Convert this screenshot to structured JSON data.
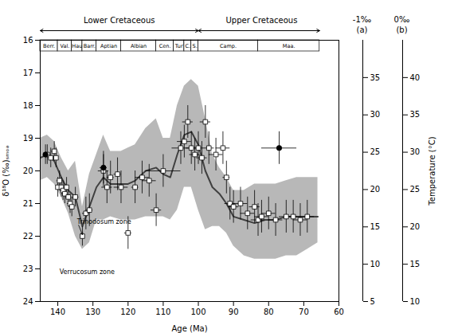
{
  "chart_data": {
    "type": "scatter",
    "xlabel": "Age (Ma)",
    "ylabel": "δ¹⁸O (‰)ₛₘₒₔ",
    "xlim": [
      145,
      60
    ],
    "ylim": [
      24,
      16
    ],
    "xticks": [
      140,
      130,
      120,
      110,
      100,
      90,
      80,
      70,
      60
    ],
    "yticks": [
      16,
      17,
      18,
      19,
      20,
      21,
      22,
      23,
      24
    ],
    "series": [
      {
        "type": "area",
        "color": "#a0a0a0",
        "x": [
          145,
          143,
          141,
          139,
          137,
          135,
          133,
          131,
          129,
          127,
          125,
          122,
          120,
          118,
          115,
          112,
          110,
          108,
          106,
          104,
          102,
          100,
          98,
          96,
          94,
          92,
          90,
          87,
          84,
          81,
          78,
          75,
          72,
          69,
          66
        ],
        "upper": [
          19.0,
          18.9,
          19.1,
          19.6,
          20.0,
          19.7,
          21.1,
          20.1,
          19.5,
          18.9,
          19.4,
          19.4,
          19.3,
          19.2,
          18.7,
          18.4,
          19.0,
          19.0,
          18.0,
          17.4,
          17.2,
          17.4,
          18.4,
          19.5,
          19.9,
          20.2,
          20.6,
          20.6,
          20.4,
          20.4,
          20.4,
          20.3,
          20.2,
          20.2,
          20.2
        ],
        "lower": [
          20.3,
          20.2,
          20.4,
          20.8,
          21.3,
          22.0,
          22.4,
          22.2,
          21.5,
          21.5,
          21.4,
          21.5,
          21.5,
          21.5,
          21.4,
          21.4,
          21.4,
          21.5,
          21.2,
          20.5,
          20.5,
          21.2,
          21.8,
          21.7,
          21.7,
          21.9,
          22.3,
          22.6,
          22.7,
          22.7,
          22.7,
          22.6,
          22.6,
          22.4,
          22.2
        ]
      },
      {
        "type": "line",
        "color": "#404040",
        "x": [
          145,
          143,
          141,
          139,
          137,
          135,
          133,
          131,
          129,
          127,
          125,
          122,
          120,
          118,
          115,
          112,
          110,
          108,
          106,
          104,
          102,
          100,
          98,
          96,
          94,
          92,
          90,
          87,
          84,
          81,
          78,
          75,
          72,
          69,
          66
        ],
        "values": [
          19.6,
          19.5,
          19.7,
          20.2,
          20.6,
          20.8,
          21.7,
          21.1,
          20.5,
          20.2,
          20.4,
          20.4,
          20.4,
          20.3,
          20.0,
          19.9,
          20.1,
          20.2,
          19.5,
          18.9,
          18.8,
          19.2,
          20.0,
          20.5,
          20.7,
          21.0,
          21.4,
          21.5,
          21.6,
          21.5,
          21.5,
          21.4,
          21.4,
          21.4,
          21.4
        ]
      },
      {
        "type": "scatter",
        "marker": "open_square",
        "color": "black",
        "x": [
          143.0,
          142.0,
          141.0,
          140.5,
          140.0,
          139.5,
          139.0,
          138.5,
          138.0,
          137.5,
          137.0,
          136.5,
          136.0,
          135.0,
          133.0,
          132.0,
          131.0,
          127.0,
          126.0,
          125.0,
          123.0,
          122.0,
          120.0,
          118.0,
          116.0,
          114.0,
          112.0,
          110.0,
          105.0,
          104.0,
          103.0,
          102.0,
          101.0,
          100.0,
          99.0,
          98.0,
          97.0,
          95.0,
          93.0,
          92.0,
          91.0,
          90.0,
          88.0,
          86.0,
          84.0,
          83.0,
          82.0,
          80.0,
          78.0,
          75.0,
          73.0,
          71.0,
          69.0
        ],
        "values": [
          19.5,
          19.6,
          19.4,
          19.6,
          20.5,
          20.3,
          20.5,
          20.6,
          20.7,
          20.5,
          20.8,
          21.0,
          21.1,
          20.8,
          22.0,
          21.3,
          21.2,
          20.0,
          20.5,
          20.2,
          20.1,
          20.5,
          21.9,
          20.5,
          20.2,
          20.3,
          21.2,
          20.0,
          19.3,
          19.1,
          18.5,
          19.3,
          19.5,
          19.3,
          19.6,
          18.5,
          19.3,
          19.5,
          19.3,
          20.2,
          21.0,
          21.1,
          21.0,
          21.3,
          21.1,
          21.5,
          21.4,
          21.3,
          21.5,
          21.4,
          21.4,
          21.5,
          21.4
        ],
        "xerr": [
          1.0,
          0.8,
          0.8,
          0.5,
          0.5,
          0.8,
          0.8,
          0.8,
          0.8,
          0.5,
          0.8,
          0.8,
          0.8,
          1.0,
          0.5,
          1.0,
          1.0,
          1.5,
          1.5,
          1.0,
          1.0,
          2.0,
          1.0,
          1.0,
          2.0,
          2.0,
          1.5,
          5.0,
          2.5,
          2.0,
          1.5,
          1.5,
          1.5,
          1.5,
          1.5,
          1.5,
          1.5,
          2.0,
          2.0,
          1.0,
          1.5,
          1.5,
          2.0,
          2.0,
          1.5,
          2.0,
          2.0,
          2.0,
          2.0,
          2.0,
          2.0,
          2.0,
          2.0
        ],
        "yerr": [
          0.3,
          0.3,
          0.3,
          0.3,
          0.3,
          0.3,
          0.3,
          0.3,
          0.3,
          0.3,
          0.3,
          0.3,
          0.3,
          0.3,
          0.3,
          0.5,
          0.5,
          0.5,
          0.5,
          0.5,
          0.5,
          0.5,
          0.5,
          0.5,
          0.5,
          0.5,
          0.5,
          0.5,
          0.5,
          0.5,
          0.5,
          0.5,
          0.5,
          0.5,
          0.5,
          0.5,
          0.5,
          0.5,
          0.5,
          0.5,
          0.5,
          0.5,
          0.5,
          0.5,
          0.5,
          0.5,
          0.5,
          0.5,
          0.5,
          0.5,
          0.5,
          0.5,
          0.5
        ]
      },
      {
        "type": "scatter",
        "marker": "circle",
        "color": "black",
        "x": [
          143.5,
          127.0,
          77.0
        ],
        "values": [
          19.5,
          19.9,
          19.3
        ],
        "xerr": [
          0.5,
          1.0,
          5.0
        ],
        "yerr": [
          0.3,
          0.5,
          0.5
        ]
      }
    ],
    "stages": [
      {
        "name": "Berr.",
        "xmin": 145,
        "xmax": 140
      },
      {
        "name": "Val.",
        "xmin": 140,
        "xmax": 136
      },
      {
        "name": "Hau",
        "xmin": 136,
        "xmax": 133
      },
      {
        "name": "Barr.",
        "xmin": 133,
        "xmax": 129
      },
      {
        "name": "Aptian",
        "xmin": 129,
        "xmax": 122
      },
      {
        "name": "Albian",
        "xmin": 122,
        "xmax": 112
      },
      {
        "name": "Cen.",
        "xmin": 112,
        "xmax": 107
      },
      {
        "name": "Tur",
        "xmin": 107,
        "xmax": 104
      },
      {
        "name": "C.",
        "xmin": 104,
        "xmax": 102
      },
      {
        "name": "S.",
        "xmin": 102,
        "xmax": 100
      },
      {
        "name": "Camp.",
        "xmin": 100,
        "xmax": 83
      },
      {
        "name": "Maa.",
        "xmin": 83,
        "xmax": 65.5
      }
    ],
    "periods": [
      {
        "text": "Lower Cretaceous",
        "x": 122.5,
        "xmin": 145,
        "xmax": 100
      },
      {
        "text": "Upper Cretaceous",
        "x": 82.0,
        "xmin": 100,
        "xmax": 65.5
      }
    ],
    "annotations": [
      {
        "text": "Trinodosum zone",
        "x": 134.5,
        "y": 21.55,
        "arrow_x": 133,
        "arrow_y": 21.95
      },
      {
        "text": "Verrucosum zone",
        "x": 139.5,
        "y": 23.1
      }
    ],
    "temperature_scales": [
      {
        "name": "-1‰",
        "tag": "(a)",
        "lim": [
          5,
          40
        ],
        "ticks": [
          5,
          10,
          15,
          20,
          25,
          30,
          35
        ]
      },
      {
        "name": "0‰",
        "tag": "(b)",
        "lim": [
          10,
          45
        ],
        "ticks": [
          10,
          15,
          20,
          25,
          30,
          35,
          40
        ],
        "label": "Temperature (°C)"
      }
    ]
  }
}
